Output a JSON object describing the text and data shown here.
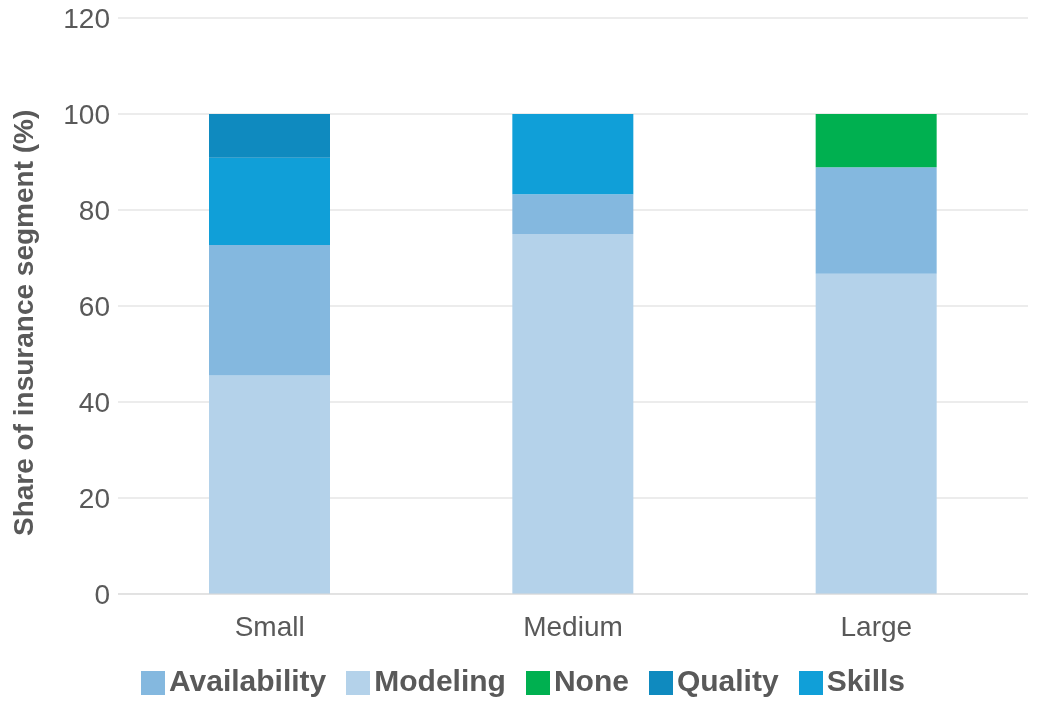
{
  "chart_data": {
    "type": "bar",
    "stacked": true,
    "ylabel": "Share of insurance segment (%)",
    "categories": [
      "Small",
      "Medium",
      "Large"
    ],
    "series": [
      {
        "name": "Modeling",
        "color": "#b4d2ea",
        "values": [
          45.5,
          75,
          66.7
        ]
      },
      {
        "name": "Availability",
        "color": "#84b8df",
        "values": [
          27.2,
          8.3,
          22.2
        ]
      },
      {
        "name": "Skills",
        "color": "#109fd8",
        "values": [
          18.2,
          16.7,
          null
        ]
      },
      {
        "name": "Quality",
        "color": "#0f8abf",
        "values": [
          9.1,
          null,
          null
        ]
      },
      {
        "name": "None",
        "color": "#00b050",
        "values": [
          null,
          null,
          11.1
        ]
      }
    ],
    "ylim": [
      0,
      120
    ],
    "yticks": [
      0,
      20,
      40,
      60,
      80,
      100,
      120
    ],
    "grid": "y",
    "legend": "bottom"
  }
}
